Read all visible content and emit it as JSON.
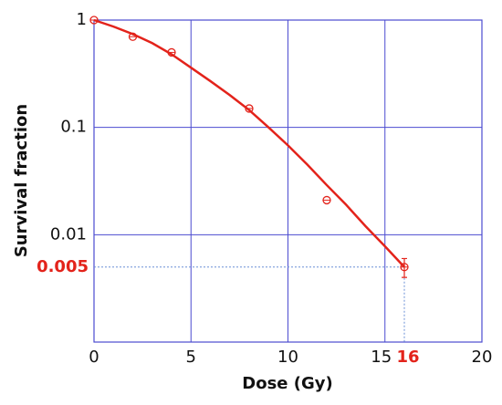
{
  "chart_data": {
    "type": "scatter",
    "x_label": "Dose (Gy)",
    "y_label": "Survival fraction",
    "xlim": [
      0,
      20
    ],
    "xticks": [
      0,
      5,
      10,
      15,
      20
    ],
    "ylim": [
      0.001,
      1
    ],
    "yticks": [
      1,
      0.1,
      0.01
    ],
    "y_scale": "log",
    "grid": true,
    "grid_color": "#4b4bd0",
    "color": "#e3231b",
    "points": {
      "x": [
        0,
        2,
        4,
        8,
        12,
        16
      ],
      "values": [
        1,
        0.7,
        0.5,
        0.15,
        0.021,
        0.005
      ],
      "errors": [
        0,
        0,
        0,
        0,
        0,
        0.001
      ]
    },
    "fit": {
      "x": [
        0,
        1,
        2,
        3,
        4,
        5,
        6,
        7,
        8,
        9,
        10,
        11,
        12,
        13,
        14,
        15,
        16
      ],
      "values": [
        1,
        0.87,
        0.74,
        0.61,
        0.48,
        0.36,
        0.27,
        0.2,
        0.145,
        0.1,
        0.068,
        0.045,
        0.029,
        0.019,
        0.012,
        0.0078,
        0.005
      ]
    },
    "reference": {
      "x": 16,
      "y": 0.005
    }
  }
}
